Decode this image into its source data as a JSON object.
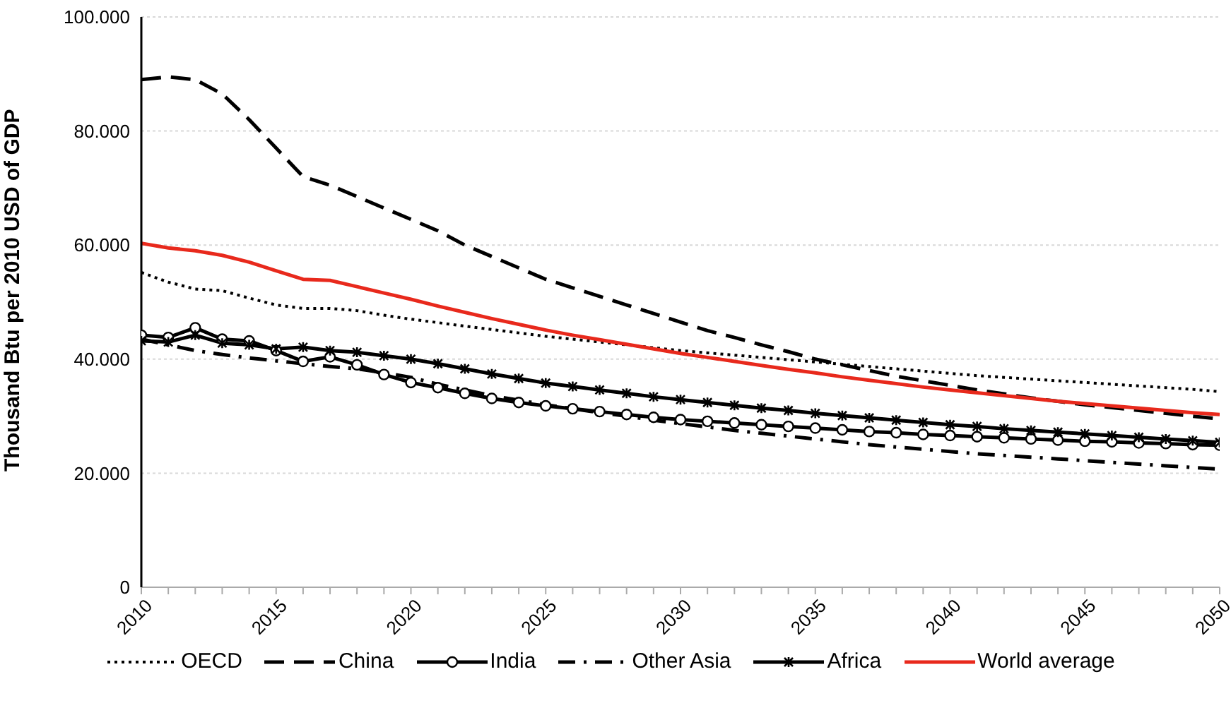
{
  "chart_data": {
    "type": "line",
    "ylabel": "Thousand Btu per 2010 USD of GDP",
    "x": [
      2010,
      2011,
      2012,
      2013,
      2014,
      2015,
      2016,
      2017,
      2018,
      2019,
      2020,
      2021,
      2022,
      2023,
      2024,
      2025,
      2026,
      2027,
      2028,
      2029,
      2030,
      2031,
      2032,
      2033,
      2034,
      2035,
      2036,
      2037,
      2038,
      2039,
      2040,
      2041,
      2042,
      2043,
      2044,
      2045,
      2046,
      2047,
      2048,
      2049,
      2050
    ],
    "xlim": [
      2010,
      2050
    ],
    "xticks": [
      2010,
      {
        "value": 2011,
        "label": null
      },
      {
        "value": 2012,
        "label": null
      },
      {
        "value": 2013,
        "label": null
      },
      {
        "value": 2014,
        "label": null
      },
      2015,
      {
        "value": 2016,
        "label": null
      },
      {
        "value": 2017,
        "label": null
      },
      {
        "value": 2018,
        "label": null
      },
      {
        "value": 2019,
        "label": null
      },
      2020,
      {
        "value": 2021,
        "label": null
      },
      {
        "value": 2022,
        "label": null
      },
      {
        "value": 2023,
        "label": null
      },
      {
        "value": 2024,
        "label": null
      },
      2025,
      {
        "value": 2026,
        "label": null
      },
      {
        "value": 2027,
        "label": null
      },
      {
        "value": 2028,
        "label": null
      },
      {
        "value": 2029,
        "label": null
      },
      2030,
      {
        "value": 2031,
        "label": null
      },
      {
        "value": 2032,
        "label": null
      },
      {
        "value": 2033,
        "label": null
      },
      {
        "value": 2034,
        "label": null
      },
      2035,
      {
        "value": 2036,
        "label": null
      },
      {
        "value": 2037,
        "label": null
      },
      {
        "value": 2038,
        "label": null
      },
      {
        "value": 2039,
        "label": null
      },
      2040,
      {
        "value": 2041,
        "label": null
      },
      {
        "value": 2042,
        "label": null
      },
      {
        "value": 2043,
        "label": null
      },
      {
        "value": 2044,
        "label": null
      },
      2045,
      {
        "value": 2046,
        "label": null
      },
      {
        "value": 2047,
        "label": null
      },
      {
        "value": 2048,
        "label": null
      },
      {
        "value": 2049,
        "label": null
      },
      2050
    ],
    "ylim": [
      0,
      100000
    ],
    "yticks": [
      0,
      {
        "value": 20000,
        "label": "20.000"
      },
      {
        "value": 40000,
        "label": "40.000"
      },
      {
        "value": 60000,
        "label": "60.000"
      },
      {
        "value": 80000,
        "label": "80.000"
      },
      {
        "value": 100000,
        "label": "100.000"
      }
    ],
    "grid": "y",
    "legend": "bottom",
    "series": [
      {
        "name": "OECD",
        "color": "#000000",
        "line_style": "dotted",
        "marker": "none",
        "values": [
          55200,
          53500,
          52300,
          52000,
          50700,
          49500,
          48900,
          48900,
          48500,
          47700,
          47000,
          46400,
          45800,
          45200,
          44600,
          44000,
          43500,
          43000,
          42500,
          42000,
          41500,
          41100,
          40700,
          40300,
          39900,
          39500,
          39100,
          38700,
          38300,
          37900,
          37500,
          37100,
          36800,
          36500,
          36200,
          35900,
          35600,
          35300,
          35000,
          34700,
          34300
        ]
      },
      {
        "name": "China",
        "color": "#000000",
        "line_style": "dashed",
        "marker": "none",
        "values": [
          89000,
          89500,
          89000,
          86500,
          82000,
          77000,
          72000,
          70500,
          68500,
          66500,
          64500,
          62500,
          60000,
          58000,
          56000,
          54000,
          52500,
          51000,
          49500,
          48000,
          46500,
          45000,
          43800,
          42500,
          41300,
          40000,
          39000,
          38000,
          37000,
          36200,
          35400,
          34600,
          33900,
          33200,
          32600,
          32000,
          31500,
          31000,
          30500,
          30000,
          29500
        ]
      },
      {
        "name": "India",
        "color": "#000000",
        "line_style": "solid",
        "marker": "circle",
        "values": [
          44200,
          43800,
          45500,
          43500,
          43200,
          41500,
          39600,
          40400,
          39000,
          37300,
          35900,
          35000,
          34000,
          33100,
          32400,
          31800,
          31300,
          30800,
          30300,
          29800,
          29400,
          29100,
          28800,
          28500,
          28200,
          27900,
          27600,
          27300,
          27100,
          26800,
          26600,
          26400,
          26200,
          26000,
          25800,
          25600,
          25500,
          25300,
          25200,
          25000,
          24900
        ]
      },
      {
        "name": "Other Asia",
        "color": "#000000",
        "line_style": "dashdot",
        "marker": "none",
        "values": [
          43500,
          42500,
          41500,
          40800,
          40200,
          39700,
          39200,
          38700,
          38300,
          37600,
          36800,
          35600,
          34600,
          33600,
          32800,
          32000,
          31300,
          30600,
          30000,
          29300,
          28700,
          28100,
          27500,
          27000,
          26500,
          26000,
          25500,
          25000,
          24600,
          24200,
          23800,
          23400,
          23100,
          22800,
          22500,
          22200,
          21900,
          21600,
          21300,
          21000,
          20700
        ]
      },
      {
        "name": "Africa",
        "color": "#000000",
        "line_style": "solid",
        "marker": "cross",
        "values": [
          43200,
          43000,
          44200,
          42800,
          42500,
          41800,
          42100,
          41500,
          41200,
          40600,
          40000,
          39200,
          38300,
          37400,
          36600,
          35800,
          35200,
          34600,
          34000,
          33400,
          32900,
          32400,
          31900,
          31400,
          31000,
          30500,
          30100,
          29700,
          29300,
          28900,
          28500,
          28200,
          27800,
          27500,
          27200,
          26900,
          26600,
          26300,
          26000,
          25700,
          25400
        ]
      },
      {
        "name": "World average",
        "color": "#e8291c",
        "line_style": "solid",
        "marker": "none",
        "values": [
          60300,
          59500,
          59000,
          58200,
          57000,
          55500,
          54000,
          53800,
          52700,
          51600,
          50500,
          49300,
          48200,
          47100,
          46100,
          45100,
          44200,
          43400,
          42600,
          41800,
          41000,
          40300,
          39600,
          38900,
          38200,
          37600,
          36900,
          36300,
          35700,
          35100,
          34600,
          34100,
          33600,
          33100,
          32600,
          32200,
          31800,
          31400,
          31000,
          30600,
          30300
        ]
      }
    ]
  }
}
